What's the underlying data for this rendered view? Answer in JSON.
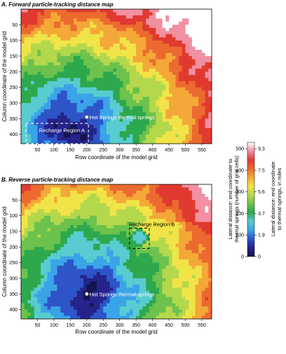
{
  "chart_data": [
    {
      "type": "heatmap",
      "title": "A. Forward particle-tracking distance map",
      "xlabel": "Row coordinate of the model grid",
      "ylabel": "Column coordinate of the model grid",
      "xlim": [
        0,
        580
      ],
      "ylim": [
        0,
        430
      ],
      "xticks": [
        50,
        100,
        150,
        200,
        250,
        300,
        350,
        400,
        450,
        500,
        550
      ],
      "yticks": [
        50,
        100,
        150,
        200,
        250,
        300,
        350,
        400
      ],
      "spring": {
        "x": 200,
        "y": 345,
        "label": "Hot Springs thermal springs"
      },
      "region_box": {
        "x": [
          15,
          205
        ],
        "y": [
          365,
          430
        ],
        "label": "Recharge Region A"
      },
      "field_note": "Colored field: lateral distance from end coordinate to thermal springs (grid cells)"
    },
    {
      "type": "heatmap",
      "title": "B. Reverse particle-tracking distance map",
      "xlabel": "Row coordinate of the model grid",
      "ylabel": "Column coordinate of the model grid",
      "xlim": [
        0,
        580
      ],
      "ylim": [
        0,
        430
      ],
      "xticks": [
        50,
        100,
        150,
        200,
        250,
        300,
        350,
        400,
        450,
        500,
        550
      ],
      "yticks": [
        50,
        100,
        150,
        200,
        250,
        300,
        350,
        400
      ],
      "spring": {
        "x": 200,
        "y": 350,
        "label": "Hot Springs thermal springs"
      },
      "region_box": {
        "x": [
          330,
          390
        ],
        "y": [
          140,
          205
        ],
        "label": "Recharge Region B"
      }
    }
  ],
  "colorbar": {
    "label_cells": "Lateral distance: end coordinate to thermal springs (number of grid cells)",
    "label_miles": "Lateral distance: end coordinate to thermal springs, in miles",
    "ticks_cells": [
      "0",
      "100",
      "200",
      "300",
      "400",
      "500"
    ],
    "ticks_miles": [
      "0",
      "1.9",
      "3.7",
      "5.6",
      "7.5",
      "9.3"
    ],
    "max_cells": 530,
    "colors": [
      "#141450",
      "#24248a",
      "#2e55c8",
      "#3aa4e8",
      "#58ccd0",
      "#2ea84c",
      "#6cc24c",
      "#b4d84c",
      "#f0e448",
      "#f4a838",
      "#ec6a30",
      "#e03a30",
      "#f090a0",
      "#ffffff"
    ]
  }
}
